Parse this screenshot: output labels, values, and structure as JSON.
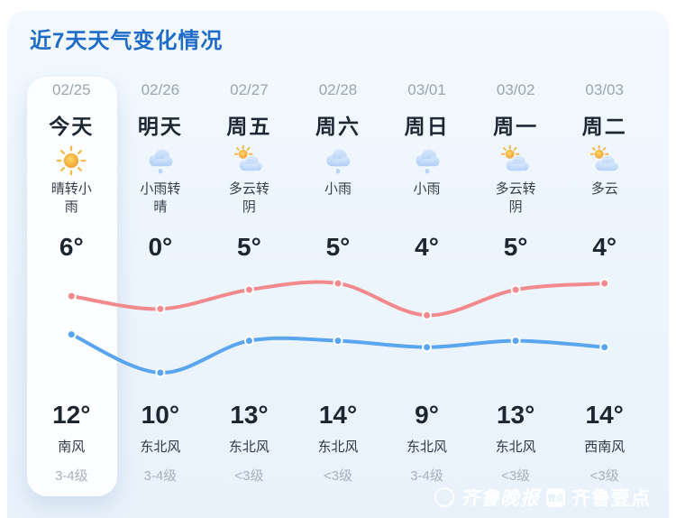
{
  "title": "近7天天气变化情况",
  "days": [
    {
      "date": "02/25",
      "day": "今天",
      "icon": "sun",
      "desc": "晴转小雨",
      "low": "6°",
      "high": "12°",
      "wind_dir": "南风",
      "wind_level": "3-4级"
    },
    {
      "date": "02/26",
      "day": "明天",
      "icon": "rain",
      "desc": "小雨转晴",
      "low": "0°",
      "high": "10°",
      "wind_dir": "东北风",
      "wind_level": "3-4级"
    },
    {
      "date": "02/27",
      "day": "周五",
      "icon": "partly",
      "desc": "多云转阴",
      "low": "5°",
      "high": "13°",
      "wind_dir": "东北风",
      "wind_level": "<3级"
    },
    {
      "date": "02/28",
      "day": "周六",
      "icon": "rain",
      "desc": "小雨",
      "low": "5°",
      "high": "14°",
      "wind_dir": "东北风",
      "wind_level": "<3级"
    },
    {
      "date": "03/01",
      "day": "周日",
      "icon": "rain",
      "desc": "小雨",
      "low": "4°",
      "high": "9°",
      "wind_dir": "东北风",
      "wind_level": "3-4级"
    },
    {
      "date": "03/02",
      "day": "周一",
      "icon": "partly",
      "desc": "多云转阴",
      "low": "5°",
      "high": "13°",
      "wind_dir": "东北风",
      "wind_level": "<3级"
    },
    {
      "date": "03/03",
      "day": "周二",
      "icon": "partly",
      "desc": "多云",
      "low": "4°",
      "high": "14°",
      "wind_dir": "西南风",
      "wind_level": "<3级"
    }
  ],
  "chart_data": {
    "type": "line",
    "categories": [
      "02/25",
      "02/26",
      "02/27",
      "02/28",
      "03/01",
      "03/02",
      "03/03"
    ],
    "series": [
      {
        "name": "high",
        "color": "#f2898c",
        "values": [
          12,
          10,
          13,
          14,
          9,
          13,
          14
        ]
      },
      {
        "name": "low",
        "color": "#5aa5f0",
        "values": [
          6,
          0,
          5,
          5,
          4,
          5,
          4
        ]
      }
    ],
    "ylim": [
      0,
      14
    ],
    "grid": false,
    "legend": "none",
    "title": "近7天天气变化情况"
  },
  "watermark": {
    "publisher": "齐鲁晚报",
    "app_badge": "壹点",
    "app_name": "齐鲁壹点"
  },
  "colors": {
    "title": "#1e6bc8",
    "accent_high": "#f2898c",
    "accent_low": "#5aa5f0"
  }
}
